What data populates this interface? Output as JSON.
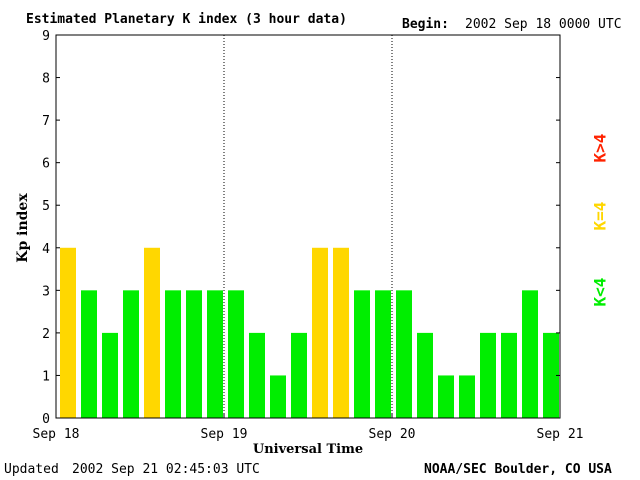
{
  "header": {
    "title": "Estimated Planetary K index (3 hour data)",
    "begin_label": "Begin:",
    "begin_value": "2002 Sep 18 0000 UTC"
  },
  "footer": {
    "updated_label": "Updated",
    "updated_value": "2002 Sep 21 02:45:03 UTC",
    "source": "NOAA/SEC Boulder, CO USA"
  },
  "legend": {
    "high": "K>4",
    "equal": "K=4",
    "low": "K<4"
  },
  "colors": {
    "low": "#00ee00",
    "equal": "#ffd700",
    "high": "#ff2200"
  },
  "chart_data": {
    "type": "bar",
    "title": "Estimated Planetary K index (3 hour data)",
    "xlabel": "Universal Time",
    "ylabel": "Kp index",
    "ylim": [
      0,
      9
    ],
    "yticks": [
      "0",
      "1",
      "2",
      "3",
      "4",
      "5",
      "6",
      "7",
      "8",
      "9"
    ],
    "xticks": [
      "Sep 18",
      "Sep 19",
      "Sep 20",
      "Sep 21"
    ],
    "interval_hours": 3,
    "values": [
      4,
      3,
      2,
      3,
      4,
      3,
      3,
      3,
      3,
      2,
      1,
      2,
      4,
      4,
      3,
      3,
      3,
      2,
      1,
      1,
      2,
      2,
      3,
      2
    ],
    "day_separators": "dotted"
  }
}
